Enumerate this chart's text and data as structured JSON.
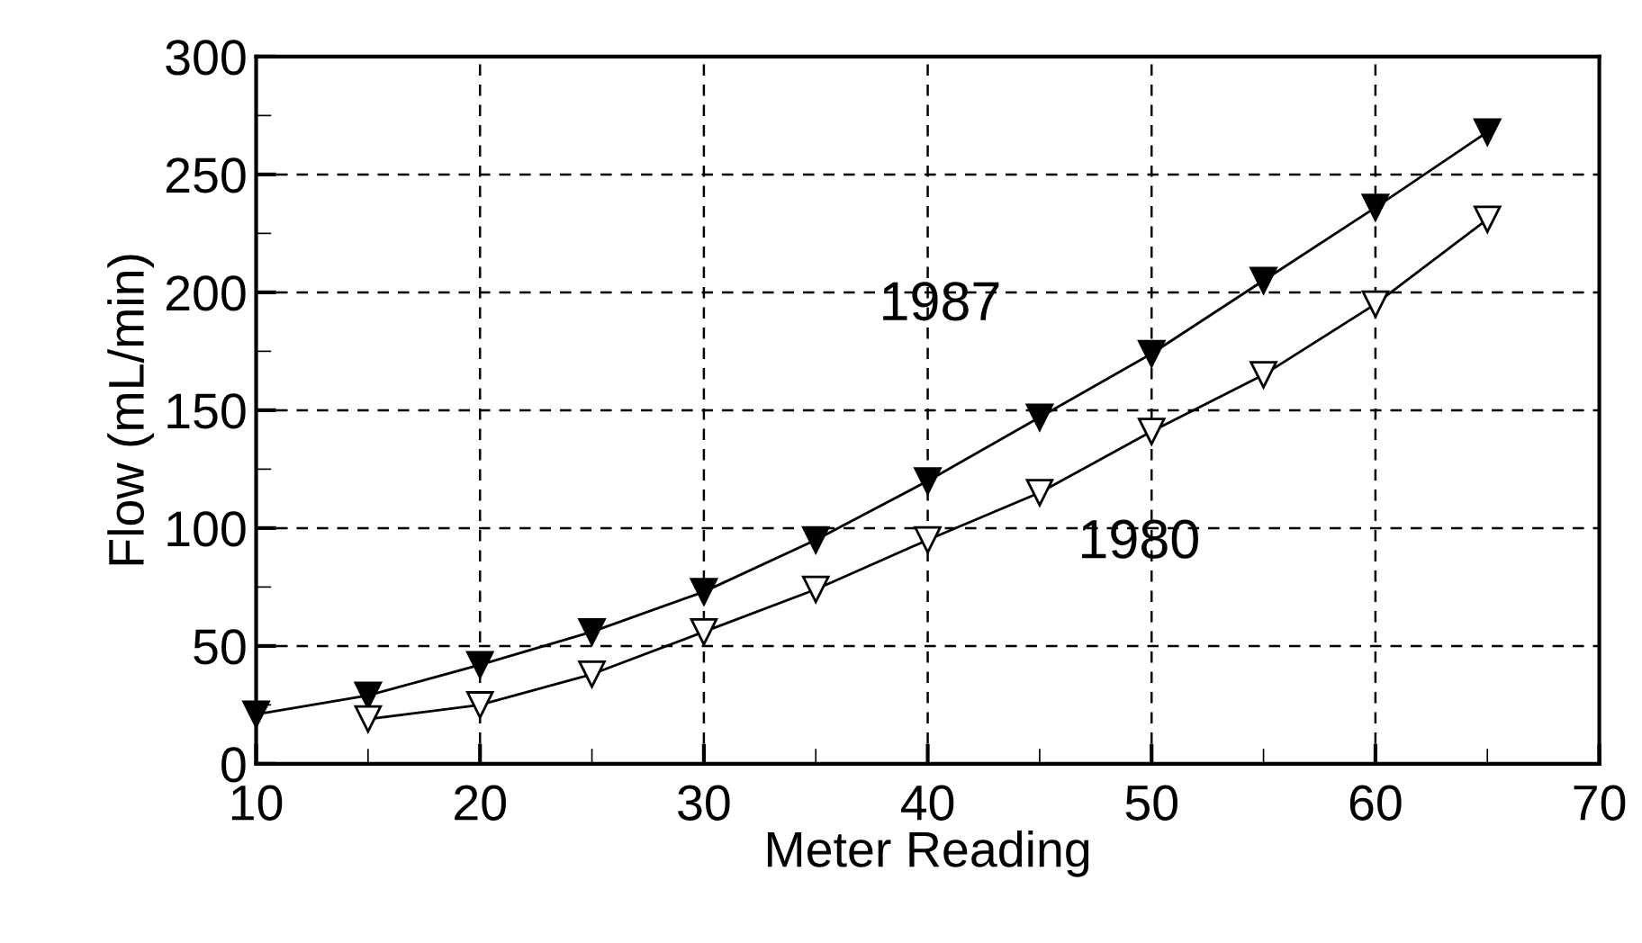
{
  "chart_data": {
    "type": "line",
    "xlabel": "Meter Reading",
    "ylabel": "Flow (mL/min)",
    "series": [
      {
        "name": "1987",
        "color": "#000000",
        "marker": "triangle",
        "x": [
          10,
          15,
          20,
          25,
          30,
          35,
          40,
          45,
          50,
          55,
          60,
          65
        ],
        "values": [
          21,
          29,
          42,
          56,
          73,
          95,
          120,
          147,
          174,
          205,
          236,
          268
        ]
      },
      {
        "name": "1980",
        "color": "#000000",
        "marker": "triangle",
        "x": [
          15,
          20,
          25,
          30,
          35,
          40,
          45,
          50,
          55,
          60,
          65
        ],
        "values": [
          19,
          25,
          38,
          56,
          74,
          95,
          115,
          141,
          165,
          195,
          231
        ]
      }
    ],
    "xlim": [
      10,
      70
    ],
    "xticks": [
      10,
      {
        "value": 15,
        "label": null
      },
      20,
      {
        "value": 25,
        "label": null
      },
      30,
      {
        "value": 35,
        "label": null
      },
      40,
      {
        "value": 45,
        "label": null
      },
      50,
      {
        "value": 55,
        "label": null
      },
      60,
      {
        "value": 65,
        "label": null
      },
      70
    ],
    "ylim": [
      0,
      300
    ],
    "yticks": [
      0,
      {
        "value": 25,
        "label": null
      },
      50,
      {
        "value": 75,
        "label": null
      },
      100,
      {
        "value": 125,
        "label": null
      },
      150,
      {
        "value": 175,
        "label": null
      },
      200,
      {
        "value": 225,
        "label": null
      },
      250,
      {
        "value": 275,
        "label": null
      },
      300
    ],
    "grid": true,
    "line_style": "solid",
    "legend": false
  }
}
